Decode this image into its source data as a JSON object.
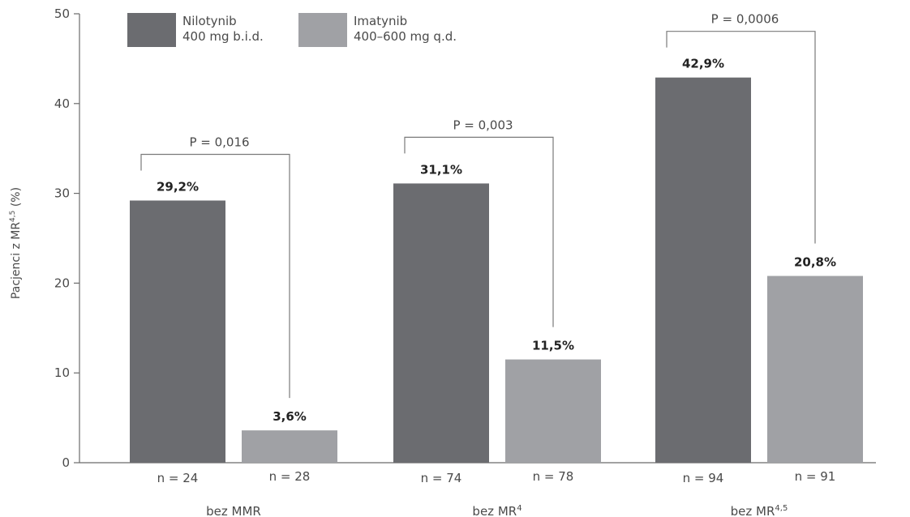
{
  "chart_data": {
    "type": "bar",
    "ylabel": "Pacjenci z MR",
    "ylabel_sup": "4,5",
    "ylabel_unit": " (%)",
    "ylim": [
      0,
      50
    ],
    "yticks": [
      "0",
      "10",
      "20",
      "30",
      "40",
      "50"
    ],
    "colors": {
      "nilotynib": "#6b6c70",
      "imatynib": "#a0a1a5"
    },
    "legend_position": "top-left",
    "legend": [
      {
        "key": "nilotynib",
        "line1": "Nilotynib",
        "line2": "400 mg b.i.d."
      },
      {
        "key": "imatynib",
        "line1": "Imatynib",
        "line2": "400–600 mg q.d."
      }
    ],
    "groups": [
      {
        "label": "bez MMR",
        "label_sup": "",
        "nilotynib": 29.2,
        "imatynib": 3.6,
        "nilotynib_label": "29,2%",
        "imatynib_label": "3,6%",
        "n_nilotynib": "n = 24",
        "n_imatynib": "n = 28",
        "p_value": "P = 0,016"
      },
      {
        "label": "bez MR",
        "label_sup": "4",
        "nilotynib": 31.1,
        "imatynib": 11.5,
        "nilotynib_label": "31,1%",
        "imatynib_label": "11,5%",
        "n_nilotynib": "n = 74",
        "n_imatynib": "n = 78",
        "p_value": "P = 0,003"
      },
      {
        "label": "bez MR",
        "label_sup": "4,5",
        "nilotynib": 42.9,
        "imatynib": 20.8,
        "nilotynib_label": "42,9%",
        "imatynib_label": "20,8%",
        "n_nilotynib": "n = 94",
        "n_imatynib": "n = 91",
        "p_value": "P = 0,0006"
      }
    ]
  }
}
